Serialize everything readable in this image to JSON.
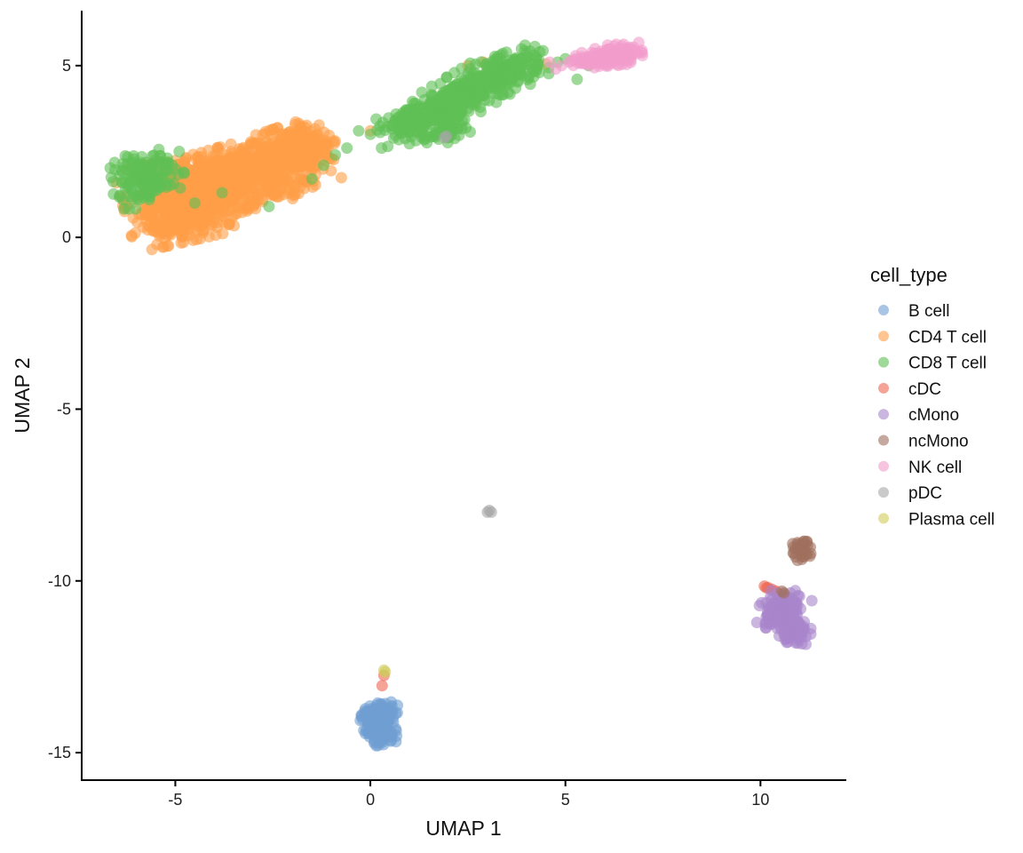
{
  "chart_data": {
    "type": "scatter",
    "xlabel": "UMAP 1",
    "ylabel": "UMAP 2",
    "xlim": [
      -7.4,
      12.2
    ],
    "ylim": [
      -15.8,
      6.6
    ],
    "x_ticks": [
      -5,
      0,
      5,
      10
    ],
    "y_ticks": [
      5,
      0,
      -5,
      -10,
      -15
    ],
    "grid": false,
    "legend_title": "cell_type",
    "legend_position": "right",
    "series": [
      {
        "name": "B cell",
        "color": "#6f9fd2",
        "clusters": [
          {
            "x": 0.2,
            "y": -14.2,
            "sx": 0.18,
            "sy": 0.28,
            "n": 180,
            "angle": 0.3
          },
          {
            "x": 0.45,
            "y": -13.8,
            "sx": 0.12,
            "sy": 0.15,
            "n": 40,
            "angle": 0
          }
        ],
        "points": [
          {
            "x": 0.3,
            "y": -14.7
          },
          {
            "x": 0.15,
            "y": -14.8
          }
        ]
      },
      {
        "name": "CD4 T cell",
        "color": "#ff9f47",
        "clusters": [
          {
            "x": -4.8,
            "y": 1.1,
            "sx": 0.7,
            "sy": 0.55,
            "n": 520,
            "angle": 0.25
          },
          {
            "x": -3.5,
            "y": 1.7,
            "sx": 0.7,
            "sy": 0.45,
            "n": 420,
            "angle": 0.3
          },
          {
            "x": -2.2,
            "y": 2.2,
            "sx": 0.55,
            "sy": 0.45,
            "n": 320,
            "angle": 0.35
          },
          {
            "x": -1.6,
            "y": 2.7,
            "sx": 0.3,
            "sy": 0.3,
            "n": 90,
            "angle": 0.3
          },
          {
            "x": -4.9,
            "y": 0.4,
            "sx": 0.45,
            "sy": 0.18,
            "n": 80,
            "angle": 0
          }
        ],
        "points": [
          {
            "x": 2.5,
            "y": 5.0
          },
          {
            "x": 2.9,
            "y": 5.1
          },
          {
            "x": 4.5,
            "y": 5.05
          },
          {
            "x": 4.3,
            "y": 5.0
          },
          {
            "x": 1.9,
            "y": 3.4
          },
          {
            "x": 2.1,
            "y": 3.5
          },
          {
            "x": 0.0,
            "y": 3.1
          },
          {
            "x": -0.9,
            "y": 2.8
          }
        ]
      },
      {
        "name": "CD8 T cell",
        "color": "#5fbf55",
        "clusters": [
          {
            "x": -5.9,
            "y": 1.6,
            "sx": 0.35,
            "sy": 0.35,
            "n": 110,
            "angle": 0
          },
          {
            "x": -5.4,
            "y": 1.9,
            "sx": 0.3,
            "sy": 0.3,
            "n": 50,
            "angle": 0
          },
          {
            "x": 0.8,
            "y": 3.3,
            "sx": 0.45,
            "sy": 0.2,
            "n": 70,
            "angle": 0.5
          },
          {
            "x": 1.6,
            "y": 3.6,
            "sx": 0.45,
            "sy": 0.3,
            "n": 140,
            "angle": 0.6
          },
          {
            "x": 2.6,
            "y": 4.3,
            "sx": 0.5,
            "sy": 0.3,
            "n": 180,
            "angle": 0.6
          },
          {
            "x": 3.5,
            "y": 4.8,
            "sx": 0.5,
            "sy": 0.25,
            "n": 160,
            "angle": 0.4
          },
          {
            "x": 1.9,
            "y": 3.0,
            "sx": 0.3,
            "sy": 0.15,
            "n": 40,
            "angle": 0
          }
        ],
        "points": [
          {
            "x": -0.6,
            "y": 2.6
          },
          {
            "x": -0.9,
            "y": 2.4
          },
          {
            "x": -1.2,
            "y": 2.1
          },
          {
            "x": -2.6,
            "y": 0.9
          },
          {
            "x": -4.9,
            "y": 2.5
          },
          {
            "x": -3.8,
            "y": 1.3
          },
          {
            "x": -4.5,
            "y": 1.0
          },
          {
            "x": -1.5,
            "y": 1.7
          },
          {
            "x": -0.3,
            "y": 3.1
          },
          {
            "x": 0.0,
            "y": 3.0
          },
          {
            "x": 4.3,
            "y": 5.05
          },
          {
            "x": 5.0,
            "y": 5.2
          },
          {
            "x": 5.3,
            "y": 4.6
          },
          {
            "x": 5.6,
            "y": 5.0
          },
          {
            "x": 4.8,
            "y": 5.1
          }
        ]
      },
      {
        "name": "cDC",
        "color": "#ee6550",
        "clusters": [],
        "points": [
          {
            "x": 10.1,
            "y": -10.15
          },
          {
            "x": 10.2,
            "y": -10.2
          },
          {
            "x": 10.3,
            "y": -10.25
          },
          {
            "x": 10.4,
            "y": -10.3
          },
          {
            "x": 10.15,
            "y": -10.2
          },
          {
            "x": 0.35,
            "y": -12.75
          },
          {
            "x": 0.3,
            "y": -13.05
          }
        ]
      },
      {
        "name": "cMono",
        "color": "#a985cc",
        "clusters": [
          {
            "x": 10.55,
            "y": -10.85,
            "sx": 0.25,
            "sy": 0.3,
            "n": 130,
            "angle": -0.6
          },
          {
            "x": 10.85,
            "y": -11.45,
            "sx": 0.2,
            "sy": 0.18,
            "n": 70,
            "angle": 0
          }
        ],
        "points": [
          {
            "x": 10.9,
            "y": -11.8
          }
        ]
      },
      {
        "name": "ncMono",
        "color": "#a0705e",
        "clusters": [
          {
            "x": 11.05,
            "y": -9.1,
            "sx": 0.12,
            "sy": 0.14,
            "n": 30,
            "angle": 0
          }
        ],
        "points": [
          {
            "x": 10.9,
            "y": -9.3
          },
          {
            "x": 10.95,
            "y": -9.4
          },
          {
            "x": 10.6,
            "y": -10.35
          },
          {
            "x": 10.55,
            "y": -10.3
          }
        ]
      },
      {
        "name": "NK cell",
        "color": "#f29ccb",
        "clusters": [
          {
            "x": 6.2,
            "y": 5.3,
            "sx": 0.35,
            "sy": 0.14,
            "n": 110,
            "angle": 0.1
          },
          {
            "x": 5.7,
            "y": 5.15,
            "sx": 0.25,
            "sy": 0.12,
            "n": 40,
            "angle": 0
          }
        ],
        "points": [
          {
            "x": 4.6,
            "y": 5.1
          },
          {
            "x": 4.9,
            "y": 5.0
          },
          {
            "x": 5.25,
            "y": 5.2
          },
          {
            "x": 4.75,
            "y": 4.9
          },
          {
            "x": 5.1,
            "y": 5.1
          }
        ]
      },
      {
        "name": "pDC",
        "color": "#a6a6a6",
        "clusters": [],
        "points": [
          {
            "x": 3.05,
            "y": -7.95
          },
          {
            "x": 3.1,
            "y": -8.0
          },
          {
            "x": 3.0,
            "y": -8.0
          },
          {
            "x": 1.9,
            "y": 2.9
          },
          {
            "x": 1.95,
            "y": 2.95
          }
        ]
      },
      {
        "name": "Plasma cell",
        "color": "#cfcb58",
        "clusters": [],
        "points": [
          {
            "x": 0.35,
            "y": -12.6
          },
          {
            "x": 0.38,
            "y": -12.65
          }
        ]
      }
    ]
  }
}
